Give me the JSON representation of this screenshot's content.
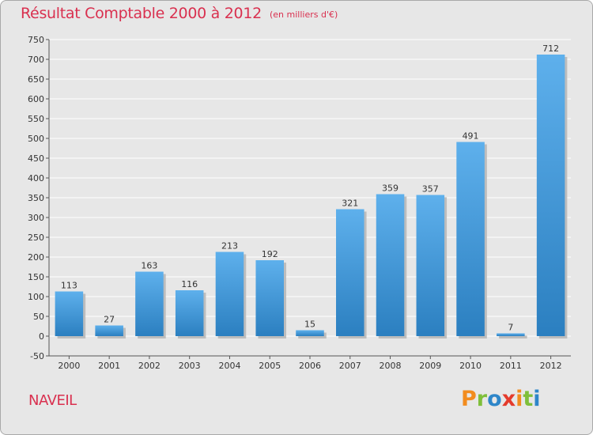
{
  "page_title": "Résultat Comptable 2000 à 2012",
  "unit_label": "(en milliers d'€)",
  "location": "NAVEIL",
  "brand": {
    "letters": [
      "P",
      "r",
      "o",
      "x",
      "i",
      "t",
      "i"
    ],
    "colors": [
      "#f28c1e",
      "#7fbf3a",
      "#2e86c9",
      "#e43b2c",
      "#f28c1e",
      "#7fbf3a",
      "#2e86c9"
    ]
  },
  "colors": {
    "bar_top": "#5eb0ec",
    "bar_bottom": "#2b7fc0",
    "grid": "#ffffff",
    "axis": "#555555",
    "title": "#d9304f"
  },
  "chart_data": {
    "type": "bar",
    "title": "Résultat Comptable 2000 à 2012",
    "subtitle": "(en milliers d'€)",
    "xlabel": "",
    "ylabel": "",
    "ylim": [
      -50,
      750
    ],
    "yticks": [
      -50,
      0,
      50,
      100,
      150,
      200,
      250,
      300,
      350,
      400,
      450,
      500,
      550,
      600,
      650,
      700,
      750
    ],
    "grid": true,
    "categories": [
      "2000",
      "2001",
      "2002",
      "2003",
      "2004",
      "2005",
      "2006",
      "2007",
      "2008",
      "2009",
      "2010",
      "2011",
      "2012"
    ],
    "values": [
      113,
      27,
      163,
      116,
      213,
      192,
      15,
      321,
      359,
      357,
      491,
      7,
      712
    ]
  }
}
